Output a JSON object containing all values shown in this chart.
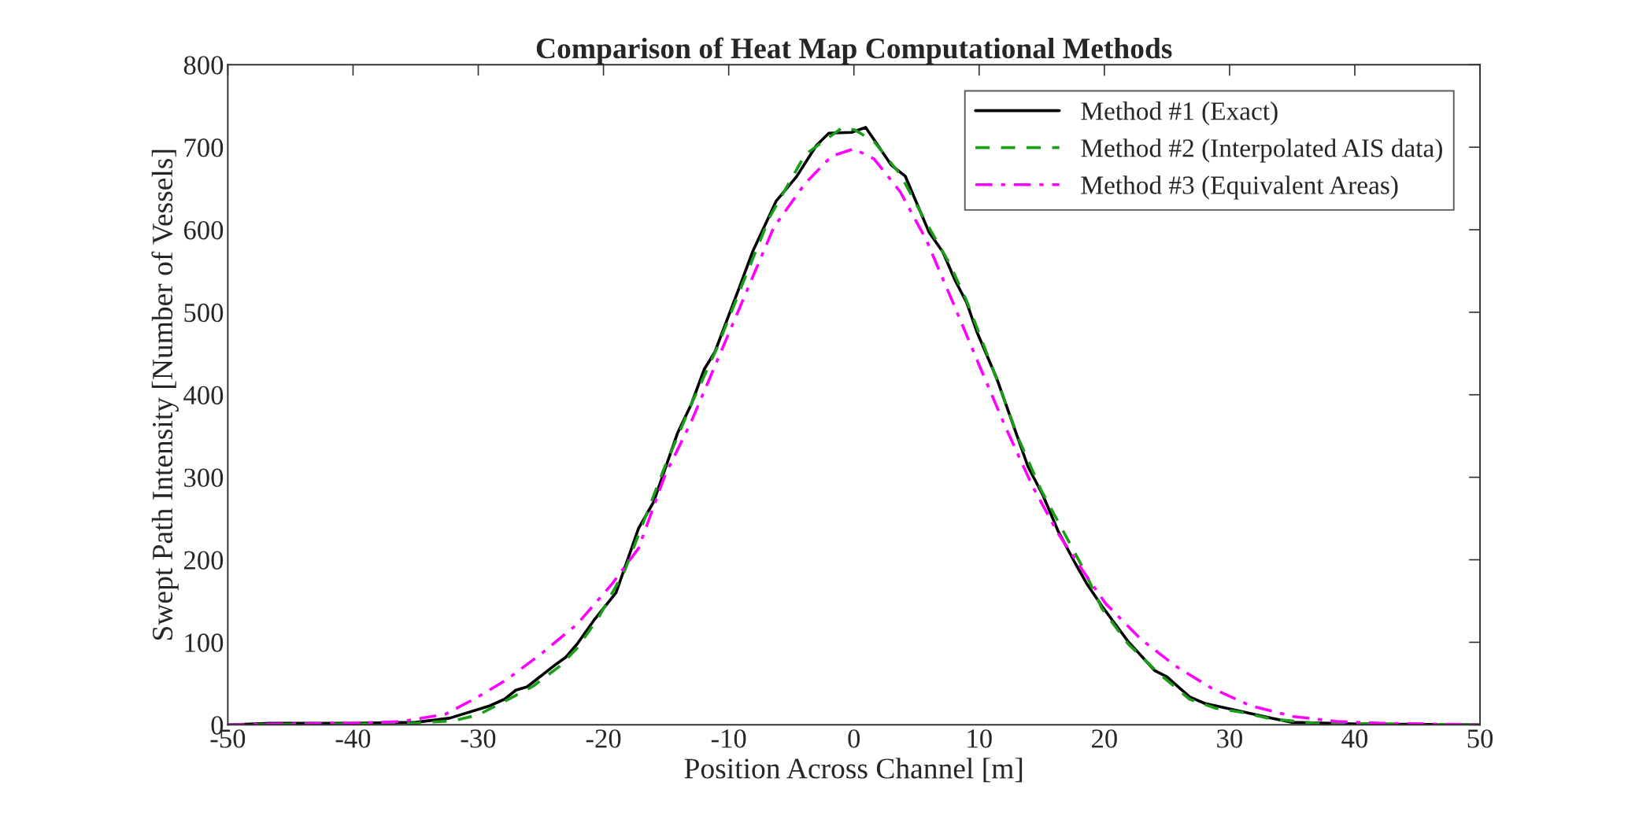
{
  "chart_data": {
    "type": "line",
    "title": "Comparison of Heat Map Computational Methods",
    "xlabel": "Position Across Channel [m]",
    "ylabel": "Swept Path Intensity [Number of Vessels]",
    "xlim": [
      -50,
      50
    ],
    "ylim": [
      0,
      800
    ],
    "xticks": [
      -50,
      -40,
      -30,
      -20,
      -10,
      0,
      10,
      20,
      30,
      40,
      50
    ],
    "yticks": [
      0,
      100,
      200,
      300,
      400,
      500,
      600,
      700,
      800
    ],
    "grid": false,
    "legend": "top right",
    "marker": "none",
    "series": [
      {
        "name": "Method #1 (Exact)",
        "color": "#000000",
        "line_style": "solid",
        "x": [
          -50,
          -46.6,
          -40,
          -35,
          -32.3,
          -29.1,
          -27.9,
          -27,
          -26.1,
          -24,
          -23,
          -22.1,
          -20.7,
          -19,
          -17.2,
          -16,
          -14.1,
          -13,
          -11.95,
          -11.1,
          -9.15,
          -8.1,
          -6.2,
          -4.6,
          -3,
          -2,
          -0.2,
          0.94,
          3.0,
          4.1,
          6.0,
          7.1,
          8.1,
          9.0,
          9.8,
          11.4,
          13.9,
          15.1,
          16.3,
          17.7,
          18.6,
          19.8,
          21.9,
          24.0,
          25.0,
          26.8,
          28.0,
          31.0,
          33.4,
          35.0,
          40.4,
          50
        ],
        "values": [
          0,
          2,
          2,
          3,
          8,
          23,
          31,
          42,
          46,
          71,
          82,
          98,
          128,
          160,
          238,
          270,
          353,
          388,
          431,
          452,
          530,
          573,
          635,
          664,
          702,
          717,
          718,
          724,
          678,
          665,
          597,
          573,
          538,
          512,
          477,
          420,
          313,
          278,
          235,
          195,
          171,
          144,
          101,
          66,
          58,
          34,
          26,
          16,
          8,
          3,
          1,
          0
        ]
      },
      {
        "name": "Method #2 (Interpolated AIS data)",
        "color": "#1a9e1a",
        "line_style": "dashed",
        "x": [
          -50,
          -40,
          -35,
          -32,
          -30,
          -27.7,
          -25.6,
          -23.5,
          -22.1,
          -20.4,
          -18.3,
          -17,
          -15.1,
          -13,
          -10.9,
          -8.8,
          -6.7,
          -3.9,
          -0.9,
          0.07,
          1.6,
          3.7,
          5.8,
          7.6,
          9.0,
          11.1,
          13.2,
          14.9,
          16.6,
          18.4,
          19.8,
          21.9,
          24.3,
          26.8,
          28.9,
          31,
          33.4,
          36.9,
          50
        ],
        "values": [
          0,
          1,
          2,
          5,
          12,
          30,
          47,
          71,
          93,
          130,
          187,
          238,
          313,
          388,
          458,
          538,
          616,
          691,
          724,
          721,
          707,
          667,
          608,
          560,
          514,
          431,
          345,
          286,
          238,
          187,
          141,
          98,
          63,
          31,
          20,
          15,
          7,
          2,
          0
        ]
      },
      {
        "name": "Method #3 (Equivalent Areas)",
        "color": "#ff00ff",
        "line_style": "dashdot",
        "x": [
          -50,
          -40,
          -36.1,
          -32.6,
          -30,
          -27.7,
          -24.9,
          -22.1,
          -19.3,
          -17.2,
          -15.1,
          -13,
          -10.9,
          -8.8,
          -6.4,
          -3.9,
          -1.8,
          0,
          1.6,
          3.7,
          5.8,
          7.9,
          10,
          12.1,
          14.2,
          16.3,
          18.4,
          20.1,
          22.9,
          25.7,
          28.5,
          31.7,
          35.1,
          38.6,
          42.1,
          50
        ],
        "values": [
          0,
          2,
          4,
          13,
          34,
          55,
          87,
          122,
          171,
          214,
          302,
          367,
          442,
          517,
          603,
          656,
          689,
          698,
          686,
          646,
          587,
          512,
          436,
          361,
          291,
          232,
          184,
          147,
          104,
          71,
          45,
          23,
          10,
          4,
          2,
          0
        ]
      }
    ]
  }
}
